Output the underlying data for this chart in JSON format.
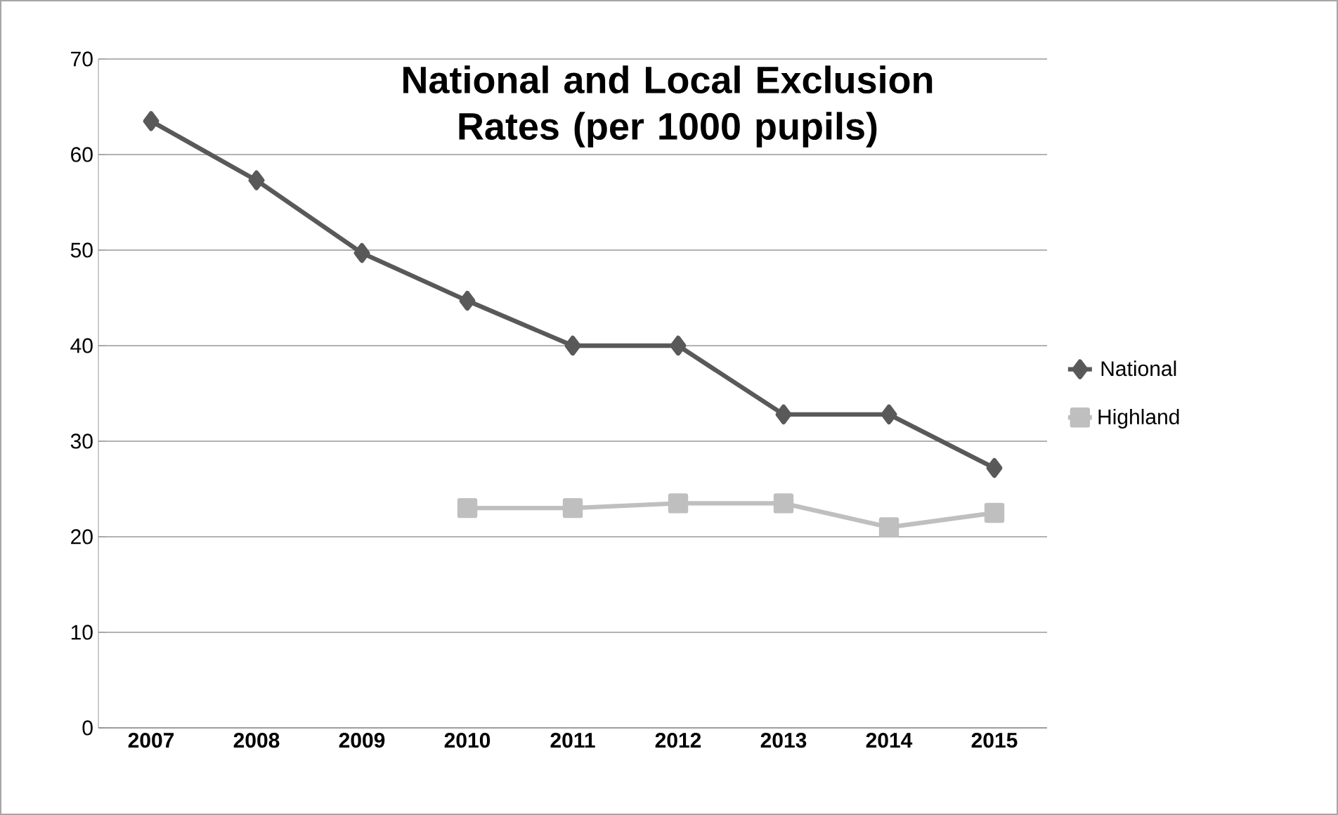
{
  "chart_data": {
    "type": "line",
    "title": "National and Local Exclusion Rates (per 1000 pupils)",
    "categories": [
      "2007",
      "2008",
      "2009",
      "2010",
      "2011",
      "2012",
      "2013",
      "2014",
      "2015"
    ],
    "series": [
      {
        "name": "National",
        "color": "#595959",
        "marker": "diamond",
        "values": [
          63.5,
          57.3,
          49.7,
          44.7,
          40,
          40,
          32.8,
          32.8,
          27.2
        ]
      },
      {
        "name": "Highland",
        "color": "#bfbfbf",
        "marker": "square",
        "values": [
          null,
          null,
          null,
          23,
          23,
          23.5,
          23.5,
          21,
          22.5
        ]
      }
    ],
    "ylim": [
      0,
      70
    ],
    "yticks": [
      0,
      10,
      20,
      30,
      40,
      50,
      60,
      70
    ],
    "grid": "y",
    "legend": "right",
    "line_style": "solid"
  }
}
